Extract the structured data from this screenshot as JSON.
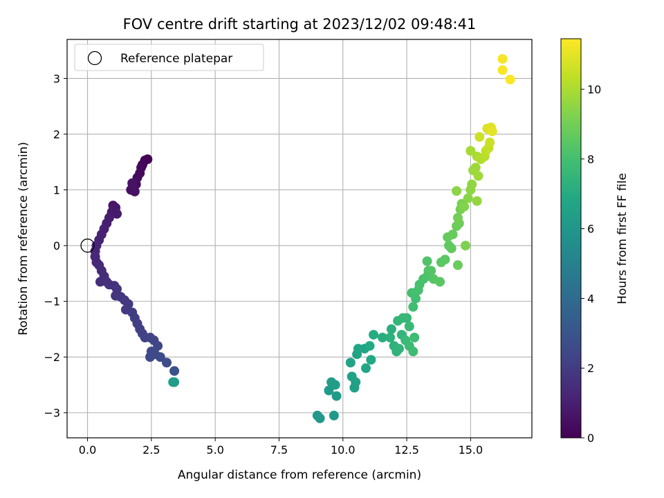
{
  "chart_data": {
    "type": "scatter",
    "title": "FOV centre drift starting at 2023/12/02 09:48:41",
    "xlabel": "Angular distance from reference (arcmin)",
    "ylabel": "Rotation from reference (arcmin)",
    "xlim": [
      -0.8,
      17.4
    ],
    "ylim": [
      -3.45,
      3.7
    ],
    "xticks": [
      0.0,
      2.5,
      5.0,
      7.5,
      10.0,
      12.5,
      15.0
    ],
    "xtick_labels": [
      "0.0",
      "2.5",
      "5.0",
      "7.5",
      "10.0",
      "12.5",
      "15.0"
    ],
    "yticks": [
      -3,
      -2,
      -1,
      0,
      1,
      2,
      3
    ],
    "ytick_labels": [
      "−3",
      "−2",
      "−1",
      "0",
      "1",
      "2",
      "3"
    ],
    "grid": true,
    "legend": {
      "placement": "top-left",
      "entries": [
        {
          "label": "Reference platepar",
          "marker": "open-circle",
          "x": 0,
          "y": 0
        }
      ]
    },
    "colorbar": {
      "label": "Hours from first FF file",
      "colormap": "viridis",
      "range": [
        0,
        11.45
      ],
      "ticks": [
        0,
        2,
        4,
        6,
        8,
        10
      ],
      "tick_labels": [
        "0",
        "2",
        "4",
        "6",
        "8",
        "10"
      ]
    },
    "series": [
      {
        "color_by": "hours",
        "points": [
          [
            2.35,
            1.55,
            0.0
          ],
          [
            2.25,
            1.53,
            0.1
          ],
          [
            2.15,
            1.45,
            0.2
          ],
          [
            2.1,
            1.4,
            0.25
          ],
          [
            2.05,
            1.3,
            0.3
          ],
          [
            1.95,
            1.22,
            0.35
          ],
          [
            1.9,
            1.1,
            0.4
          ],
          [
            1.8,
            1.05,
            0.45
          ],
          [
            1.7,
            1.0,
            0.5
          ],
          [
            1.85,
            0.97,
            0.55
          ],
          [
            1.75,
            1.12,
            0.58
          ],
          [
            1.0,
            0.72,
            0.7
          ],
          [
            1.1,
            0.68,
            0.75
          ],
          [
            0.95,
            0.6,
            0.8
          ],
          [
            1.15,
            0.57,
            0.85
          ],
          [
            0.85,
            0.5,
            0.9
          ],
          [
            0.75,
            0.4,
            0.95
          ],
          [
            0.65,
            0.3,
            1.0
          ],
          [
            0.55,
            0.2,
            1.05
          ],
          [
            0.45,
            0.1,
            1.1
          ],
          [
            0.35,
            0.0,
            1.15
          ],
          [
            0.3,
            -0.1,
            1.2
          ],
          [
            0.3,
            -0.2,
            1.25
          ],
          [
            0.35,
            -0.3,
            1.3
          ],
          [
            0.45,
            -0.35,
            1.35
          ],
          [
            0.55,
            -0.45,
            1.4
          ],
          [
            0.65,
            -0.55,
            1.45
          ],
          [
            0.5,
            -0.65,
            1.5
          ],
          [
            0.75,
            -0.65,
            1.55
          ],
          [
            0.85,
            -0.7,
            1.6
          ],
          [
            1.05,
            -0.72,
            1.65
          ],
          [
            1.15,
            -0.78,
            1.7
          ],
          [
            1.1,
            -0.9,
            1.75
          ],
          [
            1.3,
            -0.92,
            1.8
          ],
          [
            1.45,
            -0.98,
            1.85
          ],
          [
            1.6,
            -1.05,
            1.9
          ],
          [
            1.5,
            -1.15,
            1.95
          ],
          [
            1.75,
            -1.2,
            2.0
          ],
          [
            1.85,
            -1.3,
            2.05
          ],
          [
            1.95,
            -1.4,
            2.1
          ],
          [
            2.05,
            -1.5,
            2.15
          ],
          [
            2.15,
            -1.58,
            2.2
          ],
          [
            2.25,
            -1.65,
            2.25
          ],
          [
            2.45,
            -1.65,
            2.3
          ],
          [
            2.6,
            -1.7,
            2.35
          ],
          [
            2.75,
            -1.8,
            2.4
          ],
          [
            2.5,
            -1.9,
            2.45
          ],
          [
            2.65,
            -1.95,
            2.5
          ],
          [
            2.85,
            -2.0,
            2.55
          ],
          [
            2.45,
            -2.0,
            2.6
          ],
          [
            3.1,
            -2.1,
            2.7
          ],
          [
            3.4,
            -2.25,
            2.8
          ],
          [
            3.4,
            -2.45,
            6.3
          ],
          [
            3.35,
            -2.45,
            6.25
          ],
          [
            9.0,
            -3.05,
            6.0
          ],
          [
            9.1,
            -3.1,
            6.05
          ],
          [
            9.65,
            -3.05,
            6.1
          ],
          [
            9.75,
            -2.7,
            6.2
          ],
          [
            9.45,
            -2.6,
            6.15
          ],
          [
            9.55,
            -2.45,
            6.3
          ],
          [
            9.7,
            -2.5,
            6.35
          ],
          [
            10.45,
            -2.55,
            6.4
          ],
          [
            10.5,
            -2.45,
            6.45
          ],
          [
            10.35,
            -2.35,
            6.5
          ],
          [
            10.3,
            -2.1,
            6.55
          ],
          [
            10.55,
            -1.95,
            6.6
          ],
          [
            10.6,
            -1.85,
            6.7
          ],
          [
            10.85,
            -1.85,
            6.75
          ],
          [
            10.9,
            -2.2,
            6.8
          ],
          [
            11.1,
            -2.05,
            6.85
          ],
          [
            11.05,
            -1.8,
            6.9
          ],
          [
            11.2,
            -1.6,
            7.0
          ],
          [
            11.55,
            -1.65,
            7.1
          ],
          [
            11.9,
            -1.5,
            7.2
          ],
          [
            11.85,
            -1.65,
            7.25
          ],
          [
            12.0,
            -1.8,
            7.3
          ],
          [
            12.1,
            -1.9,
            7.35
          ],
          [
            12.2,
            -1.85,
            7.4
          ],
          [
            12.3,
            -1.6,
            7.45
          ],
          [
            12.15,
            -1.35,
            7.5
          ],
          [
            12.35,
            -1.3,
            7.55
          ],
          [
            12.5,
            -1.3,
            7.6
          ],
          [
            12.6,
            -1.45,
            7.65
          ],
          [
            12.45,
            -1.7,
            7.7
          ],
          [
            12.6,
            -1.8,
            7.75
          ],
          [
            12.75,
            -1.9,
            7.8
          ],
          [
            12.8,
            -1.65,
            7.85
          ],
          [
            12.75,
            -1.1,
            7.9
          ],
          [
            12.85,
            -0.95,
            7.95
          ],
          [
            12.7,
            -0.85,
            8.0
          ],
          [
            12.95,
            -0.8,
            8.05
          ],
          [
            13.0,
            -0.7,
            8.1
          ],
          [
            13.15,
            -0.6,
            8.15
          ],
          [
            13.3,
            -0.55,
            8.2
          ],
          [
            13.35,
            -0.45,
            8.25
          ],
          [
            13.3,
            -0.28,
            8.3
          ],
          [
            13.45,
            -0.45,
            8.35
          ],
          [
            13.55,
            -0.6,
            8.4
          ],
          [
            13.8,
            -0.65,
            8.45
          ],
          [
            13.85,
            -0.3,
            8.5
          ],
          [
            14.0,
            -0.25,
            8.55
          ],
          [
            14.15,
            0.0,
            8.6
          ],
          [
            14.25,
            -0.05,
            8.65
          ],
          [
            14.1,
            0.15,
            8.7
          ],
          [
            14.3,
            0.2,
            8.75
          ],
          [
            14.5,
            -0.35,
            8.8
          ],
          [
            14.45,
            0.35,
            8.85
          ],
          [
            14.55,
            0.4,
            8.9
          ],
          [
            14.5,
            0.5,
            9.0
          ],
          [
            14.6,
            0.65,
            9.05
          ],
          [
            14.65,
            0.75,
            9.1
          ],
          [
            14.8,
            0.0,
            9.2
          ],
          [
            14.75,
            0.7,
            9.3
          ],
          [
            14.9,
            0.85,
            9.4
          ],
          [
            14.45,
            0.98,
            9.45
          ],
          [
            15.0,
            1.0,
            9.5
          ],
          [
            15.05,
            1.1,
            9.55
          ],
          [
            15.25,
            0.8,
            9.6
          ],
          [
            15.1,
            1.35,
            9.7
          ],
          [
            15.2,
            1.4,
            9.75
          ],
          [
            15.3,
            1.25,
            9.8
          ],
          [
            15.0,
            1.7,
            9.9
          ],
          [
            15.25,
            1.6,
            10.0
          ],
          [
            15.4,
            1.55,
            10.1
          ],
          [
            15.55,
            1.6,
            10.2
          ],
          [
            15.6,
            1.7,
            10.3
          ],
          [
            15.7,
            1.75,
            10.4
          ],
          [
            15.75,
            1.85,
            10.5
          ],
          [
            15.35,
            1.95,
            10.6
          ],
          [
            15.65,
            2.1,
            10.8
          ],
          [
            15.8,
            2.12,
            10.9
          ],
          [
            15.85,
            2.05,
            11.0
          ],
          [
            16.25,
            3.35,
            11.3
          ],
          [
            16.25,
            3.15,
            11.35
          ],
          [
            16.55,
            2.98,
            11.4
          ]
        ]
      }
    ]
  }
}
